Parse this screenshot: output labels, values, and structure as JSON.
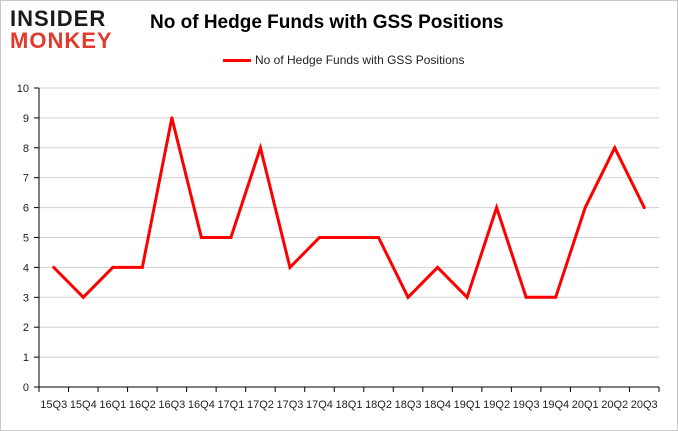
{
  "brand": {
    "line1": "INSIDER",
    "line2": "MONKEY"
  },
  "colors": {
    "series": "#ff0000",
    "grid": "#d0d0d0",
    "axis": "#000000",
    "logo_red": "#e23a2b"
  },
  "chart_data": {
    "type": "line",
    "title": "No of Hedge Funds with GSS Positions",
    "xlabel": "",
    "ylabel": "",
    "ylim": [
      0,
      10
    ],
    "yticks": [
      0,
      1,
      2,
      3,
      4,
      5,
      6,
      7,
      8,
      9,
      10
    ],
    "grid": "horizontal",
    "legend_position": "top-center",
    "categories": [
      "15Q3",
      "15Q4",
      "16Q1",
      "16Q2",
      "16Q3",
      "16Q4",
      "17Q1",
      "17Q2",
      "17Q3",
      "17Q4",
      "18Q1",
      "18Q2",
      "18Q3",
      "18Q4",
      "19Q1",
      "19Q2",
      "19Q3",
      "19Q4",
      "20Q1",
      "20Q2",
      "20Q3"
    ],
    "series": [
      {
        "name": "No of Hedge Funds with GSS Positions",
        "values": [
          4,
          3,
          4,
          4,
          9,
          5,
          5,
          8,
          4,
          5,
          5,
          5,
          3,
          4,
          3,
          6,
          3,
          3,
          6,
          8,
          6
        ]
      }
    ]
  }
}
